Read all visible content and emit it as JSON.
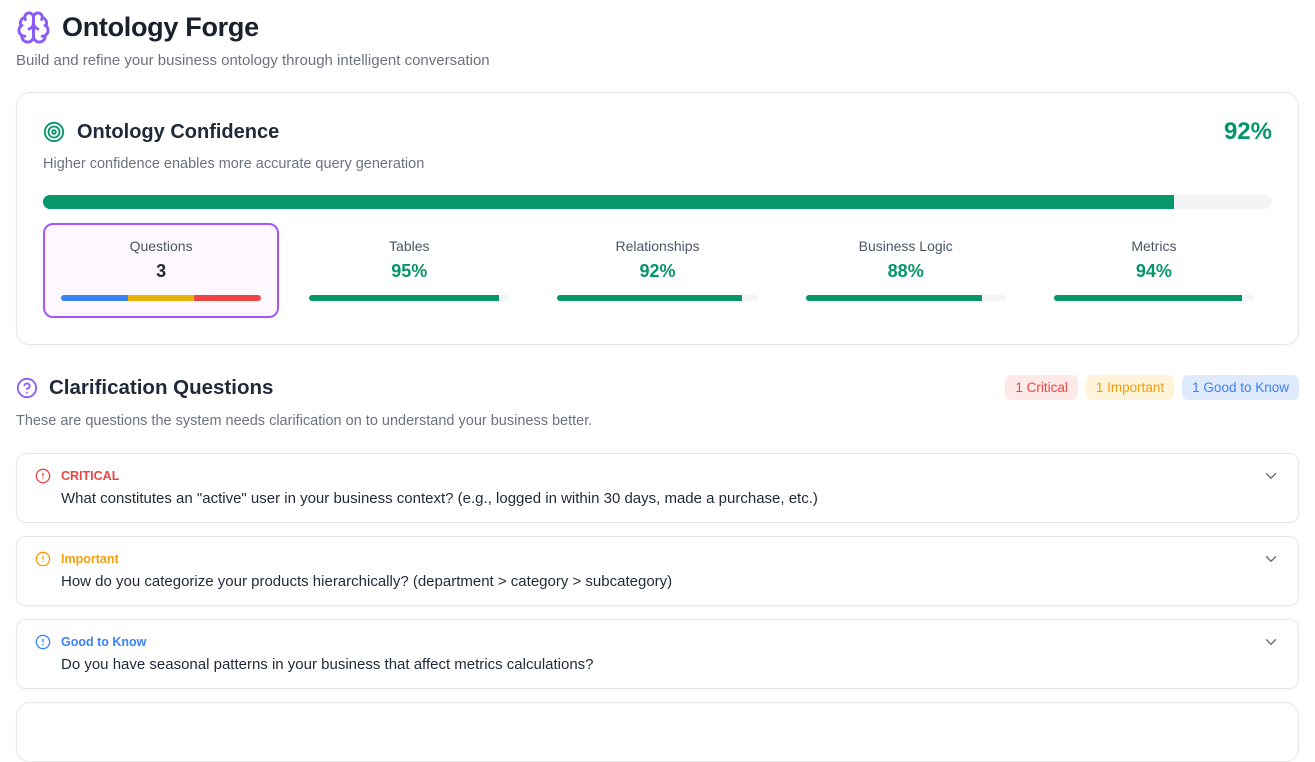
{
  "app": {
    "title": "Ontology Forge",
    "subtitle": "Build and refine your business ontology through intelligent conversation"
  },
  "confidence": {
    "title": "Ontology Confidence",
    "subtitle": "Higher confidence enables more accurate query generation",
    "overall_percent_label": "92%",
    "overall_percent_value": 92,
    "stats": [
      {
        "label": "Questions",
        "value": "3",
        "bar_type": "tri-color",
        "segment_colors": [
          "#3b82f6",
          "#eab308",
          "#ef4444"
        ],
        "highlighted": true
      },
      {
        "label": "Tables",
        "value": "95%",
        "percent": 95
      },
      {
        "label": "Relationships",
        "value": "92%",
        "percent": 92
      },
      {
        "label": "Business Logic",
        "value": "88%",
        "percent": 88
      },
      {
        "label": "Metrics",
        "value": "94%",
        "percent": 94
      }
    ]
  },
  "clarification": {
    "title": "Clarification Questions",
    "subtitle": "These are questions the system needs clarification on to understand your business better.",
    "badges": [
      {
        "label": "1 Critical",
        "color": "#ef4444",
        "background": "#fee9e9"
      },
      {
        "label": "1 Important",
        "color": "#f59e0b",
        "background": "#fdf4da"
      },
      {
        "label": "1 Good to Know",
        "color": "#3b82f6",
        "background": "#dfeafd"
      }
    ],
    "questions": [
      {
        "severity_label": "CRITICAL",
        "color": "#ef4444",
        "text": "What constitutes an \"active\" user in your business context? (e.g., logged in within 30 days, made a purchase, etc.)"
      },
      {
        "severity_label": "Important",
        "color": "#f59e0b",
        "text": "How do you categorize your products hierarchically? (department > category > subcategory)"
      },
      {
        "severity_label": "Good to Know",
        "color": "#3b82f6",
        "text": "Do you have seasonal patterns in your business that affect metrics calculations?"
      }
    ]
  },
  "colors": {
    "accent_green": "#059669",
    "accent_purple": "#8b5cf6",
    "questions_border_purple": "#a855f7",
    "track_gray": "#f3f4f6"
  }
}
